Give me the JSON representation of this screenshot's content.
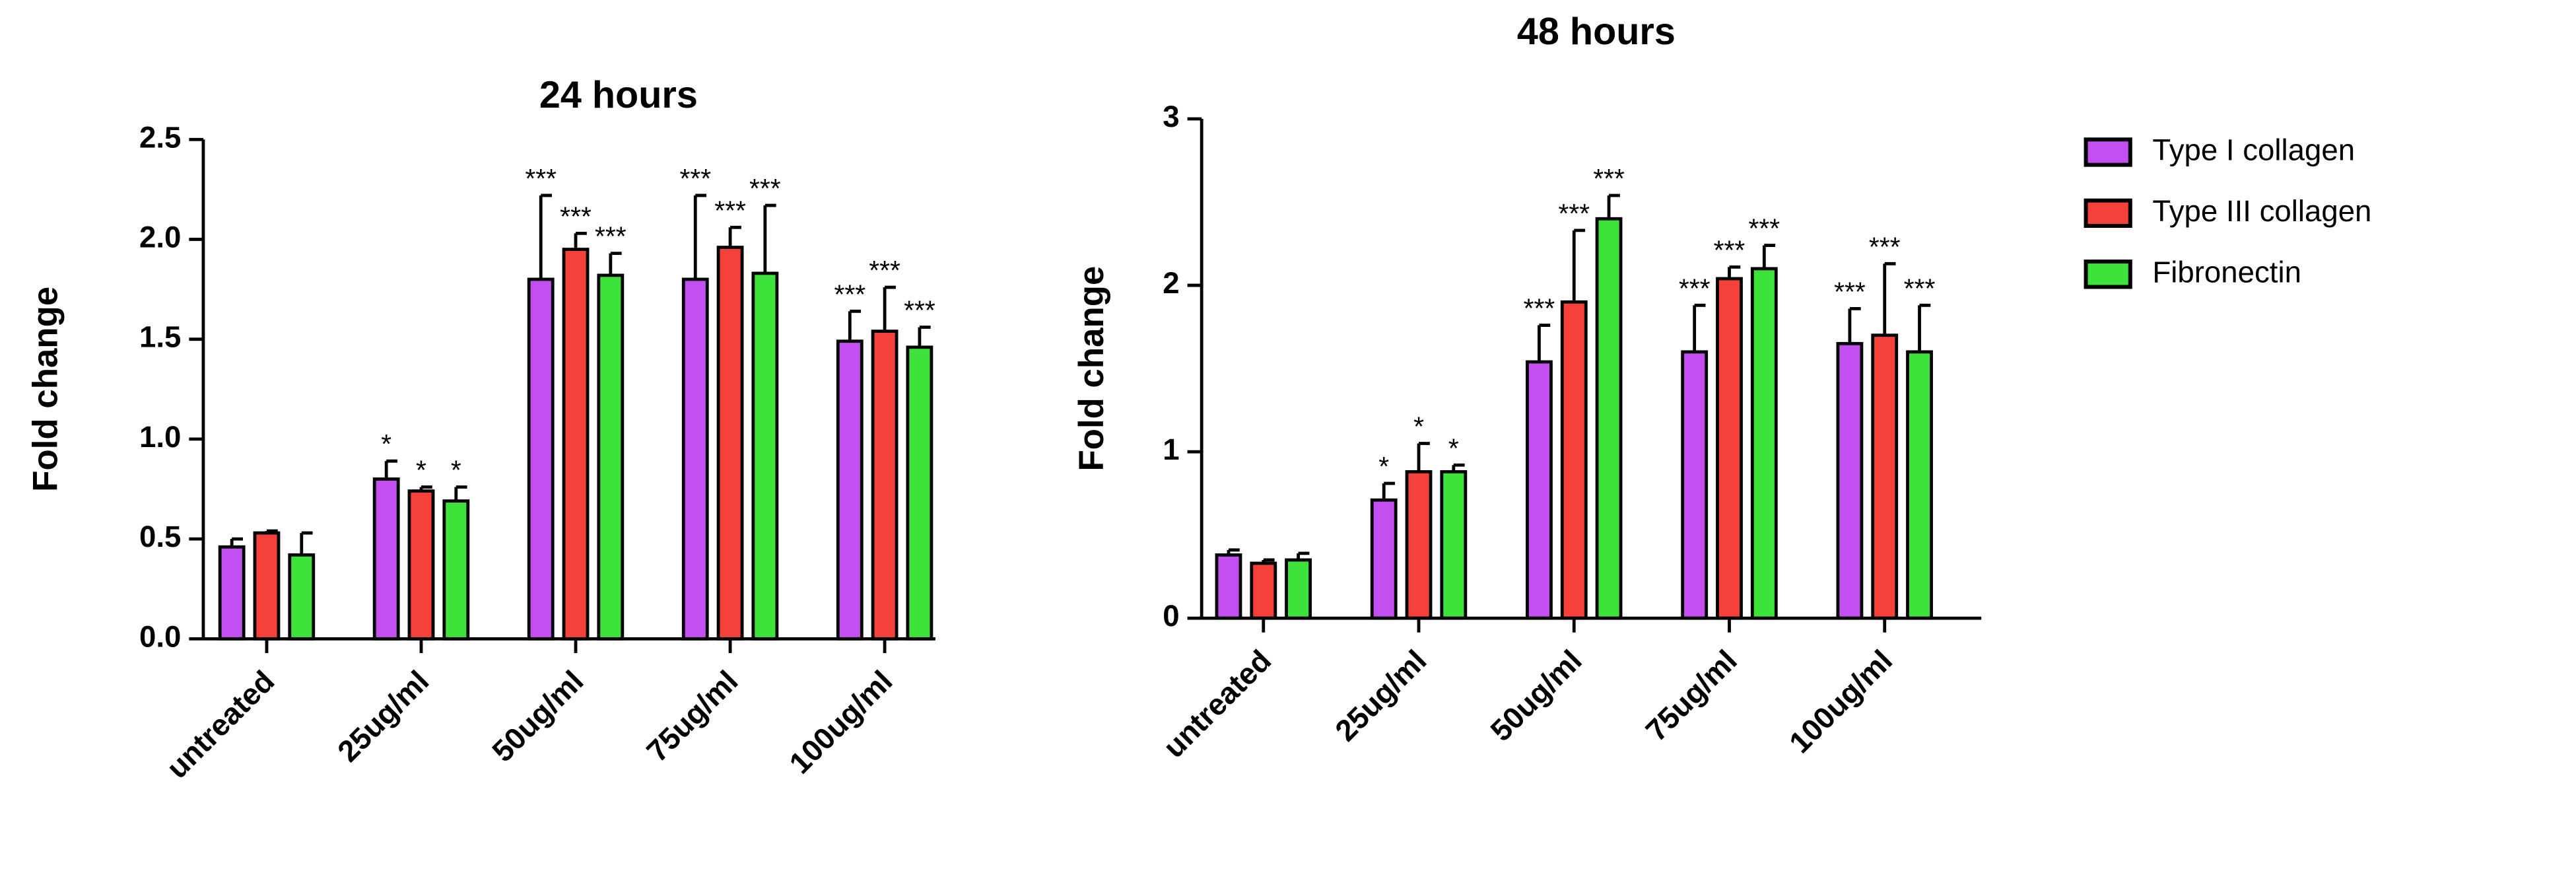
{
  "chart_data": [
    {
      "type": "bar",
      "title": "24 hours",
      "y_label": "Fold change",
      "categories": [
        "untreated",
        "25ug/ml",
        "50ug/ml",
        "75ug/ml",
        "100ug/ml"
      ],
      "ylim": [
        0,
        2.5
      ],
      "yticks": [
        {
          "value": 0,
          "label": "0.0"
        },
        0.5,
        {
          "value": 1,
          "label": "1.0"
        },
        1.5,
        {
          "value": 2,
          "label": "2.0"
        },
        2.5
      ],
      "series": [
        {
          "color": "#c34ff0",
          "values": [
            0.46,
            0.8,
            1.8,
            1.8,
            1.49
          ],
          "errors": [
            0.04,
            0.09,
            0.42,
            0.42,
            0.15
          ],
          "annotations": [
            null,
            "*",
            "***",
            "***",
            "***"
          ]
        },
        {
          "color": "#f5413a",
          "values": [
            0.53,
            0.74,
            1.95,
            1.96,
            1.54
          ],
          "errors": [
            0.01,
            0.02,
            0.08,
            0.1,
            0.22
          ],
          "annotations": [
            null,
            "*",
            "***",
            "***",
            "***"
          ]
        },
        {
          "color": "#3de33a",
          "values": [
            0.42,
            0.69,
            1.82,
            1.83,
            1.46
          ],
          "errors": [
            0.11,
            0.07,
            0.11,
            0.34,
            0.1
          ],
          "annotations": [
            null,
            "*",
            "***",
            "***",
            "***"
          ]
        }
      ]
    },
    {
      "type": "bar",
      "title": "48 hours",
      "y_label": "Fold change",
      "categories": [
        "untreated",
        "25ug/ml",
        "50ug/ml",
        "75ug/ml",
        "100ug/ml"
      ],
      "ylim": [
        0,
        3
      ],
      "yticks": [
        0,
        1,
        2,
        3
      ],
      "series": [
        {
          "name": "Type I collagen",
          "color": "#c34ff0",
          "values": [
            0.38,
            0.71,
            1.54,
            1.6,
            1.65
          ],
          "errors": [
            0.03,
            0.1,
            0.22,
            0.28,
            0.21
          ],
          "annotations": [
            null,
            "*",
            "***",
            "***",
            "***"
          ]
        },
        {
          "name": "Type III collagen",
          "color": "#f5413a",
          "values": [
            0.33,
            0.88,
            1.9,
            2.04,
            1.7
          ],
          "errors": [
            0.02,
            0.17,
            0.43,
            0.07,
            0.43
          ],
          "annotations": [
            null,
            "*",
            "***",
            "***",
            "***"
          ]
        },
        {
          "name": "Fibronectin",
          "color": "#3de33a",
          "values": [
            0.35,
            0.88,
            2.4,
            2.1,
            1.6
          ],
          "errors": [
            0.04,
            0.04,
            0.14,
            0.14,
            0.28
          ],
          "annotations": [
            null,
            "*",
            "***",
            "***",
            "***"
          ]
        }
      ]
    }
  ]
}
